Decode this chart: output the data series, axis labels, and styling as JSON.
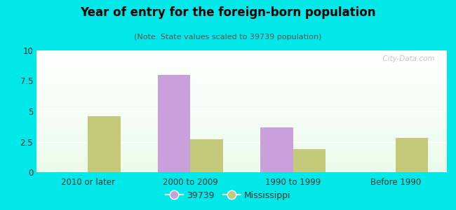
{
  "title": "Year of entry for the foreign-born population",
  "subtitle": "(Note: State values scaled to 39739 population)",
  "categories": [
    "2010 or later",
    "2000 to 2009",
    "1990 to 1999",
    "Before 1990"
  ],
  "series_39739": [
    0,
    8.0,
    3.7,
    0
  ],
  "series_mississippi": [
    4.6,
    2.7,
    1.9,
    2.8
  ],
  "color_39739": "#c9a0dc",
  "color_mississippi": "#c5c97a",
  "background_color": "#00e8e8",
  "ylim": [
    0,
    10
  ],
  "yticks": [
    0,
    2.5,
    5,
    7.5,
    10
  ],
  "bar_width": 0.32,
  "legend_label_39739": "39739",
  "legend_label_mississippi": "Mississippi",
  "watermark": "  City-Data.com"
}
